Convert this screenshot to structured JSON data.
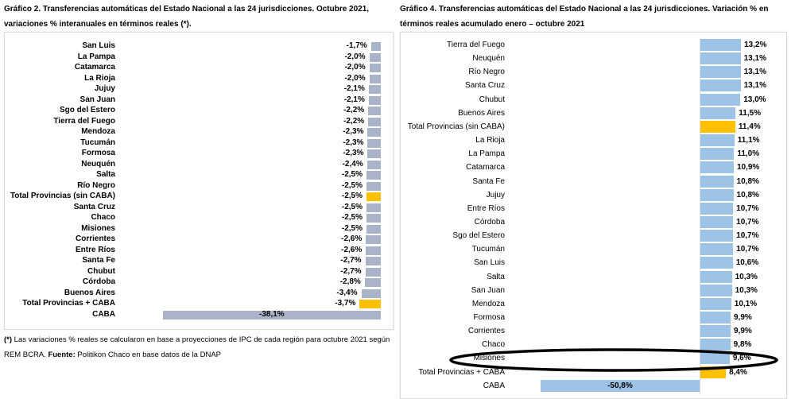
{
  "chart_data": [
    {
      "type": "bar",
      "orientation": "horizontal",
      "title": "Gráfico 2. Transferencias automáticas del Estado Nacional a las 24 jurisdicciones. Octubre 2021, variaciones % interanuales en términos reales (*).",
      "categories": [
        "San Luis",
        "La Pampa",
        "Catamarca",
        "La Rioja",
        "Jujuy",
        "San Juan",
        "Sgo del Estero",
        "Tierra del Fuego",
        "Mendoza",
        "Tucumán",
        "Formosa",
        "Neuquén",
        "Salta",
        "Río Negro",
        "Total Provincias (sin CABA)",
        "Santa Cruz",
        "Chaco",
        "Misiones",
        "Corrientes",
        "Entre Ríos",
        "Santa Fe",
        "Chubut",
        "Córdoba",
        "Buenos Aires",
        "Total Provincias + CABA",
        "CABA"
      ],
      "values": [
        -1.7,
        -2.0,
        -2.0,
        -2.0,
        -2.1,
        -2.1,
        -2.2,
        -2.2,
        -2.3,
        -2.3,
        -2.3,
        -2.4,
        -2.5,
        -2.5,
        -2.5,
        -2.5,
        -2.5,
        -2.5,
        -2.6,
        -2.6,
        -2.7,
        -2.7,
        -2.8,
        -3.4,
        -3.7,
        -38.1
      ],
      "labels": [
        "-1,7%",
        "-2,0%",
        "-2,0%",
        "-2,0%",
        "-2,1%",
        "-2,1%",
        "-2,2%",
        "-2,2%",
        "-2,3%",
        "-2,3%",
        "-2,3%",
        "-2,4%",
        "-2,5%",
        "-2,5%",
        "-2,5%",
        "-2,5%",
        "-2,5%",
        "-2,5%",
        "-2,6%",
        "-2,6%",
        "-2,7%",
        "-2,7%",
        "-2,8%",
        "-3,4%",
        "-3,7%",
        "-38,1%"
      ],
      "highlight": [
        "Total Provincias (sin CABA)",
        "Total Provincias + CABA"
      ],
      "bar_color": "#a9b4c8",
      "highlight_color": "#ffc000",
      "note": {
        "mark": "(*)",
        "text": " Las variaciones % reales se calcularon en base a proyecciones de IPC de cada región para octubre 2021 según REM BCRA. ",
        "source_label": "Fuente:",
        "source_text": " Politikon Chaco en base datos de la DNAP"
      }
    },
    {
      "type": "bar",
      "orientation": "horizontal",
      "title": "Gráfico 4. Transferencias automáticas del Estado Nacional a las 24 jurisdicciones. Variación % en términos reales acumulado enero – octubre 2021",
      "categories": [
        "Tierra del Fuego",
        "Neuquén",
        "Río Negro",
        "Santa Cruz",
        "Chubut",
        "Buenos Aires",
        "Total Provincias (sin CABA)",
        "La Rioja",
        "La Pampa",
        "Catamarca",
        "Santa Fe",
        "Jujuy",
        "Entre Ríos",
        "Córdoba",
        "Sgo del Estero",
        "Tucumán",
        "San Luis",
        "Salta",
        "San Juan",
        "Mendoza",
        "Formosa",
        "Corrientes",
        "Chaco",
        "Misiones",
        "Total Provincias + CABA",
        "CABA"
      ],
      "values": [
        13.2,
        13.1,
        13.1,
        13.1,
        13.0,
        11.5,
        11.4,
        11.1,
        11.0,
        10.9,
        10.8,
        10.8,
        10.7,
        10.7,
        10.7,
        10.7,
        10.6,
        10.3,
        10.3,
        10.1,
        9.9,
        9.9,
        9.8,
        9.6,
        8.4,
        -50.8
      ],
      "labels": [
        "13,2%",
        "13,1%",
        "13,1%",
        "13,1%",
        "13,0%",
        "11,5%",
        "11,4%",
        "11,1%",
        "11,0%",
        "10,9%",
        "10,8%",
        "10,8%",
        "10,7%",
        "10,7%",
        "10,7%",
        "10,7%",
        "10,6%",
        "10,3%",
        "10,3%",
        "10,1%",
        "9,9%",
        "9,9%",
        "9,8%",
        "9,6%",
        "8,4%",
        "-50,8%"
      ],
      "highlight": [
        "Total Provincias (sin CABA)",
        "Total Provincias + CABA"
      ],
      "circled": "Misiones",
      "bar_color": "#9dc3e6",
      "highlight_color": "#ffc000"
    }
  ]
}
